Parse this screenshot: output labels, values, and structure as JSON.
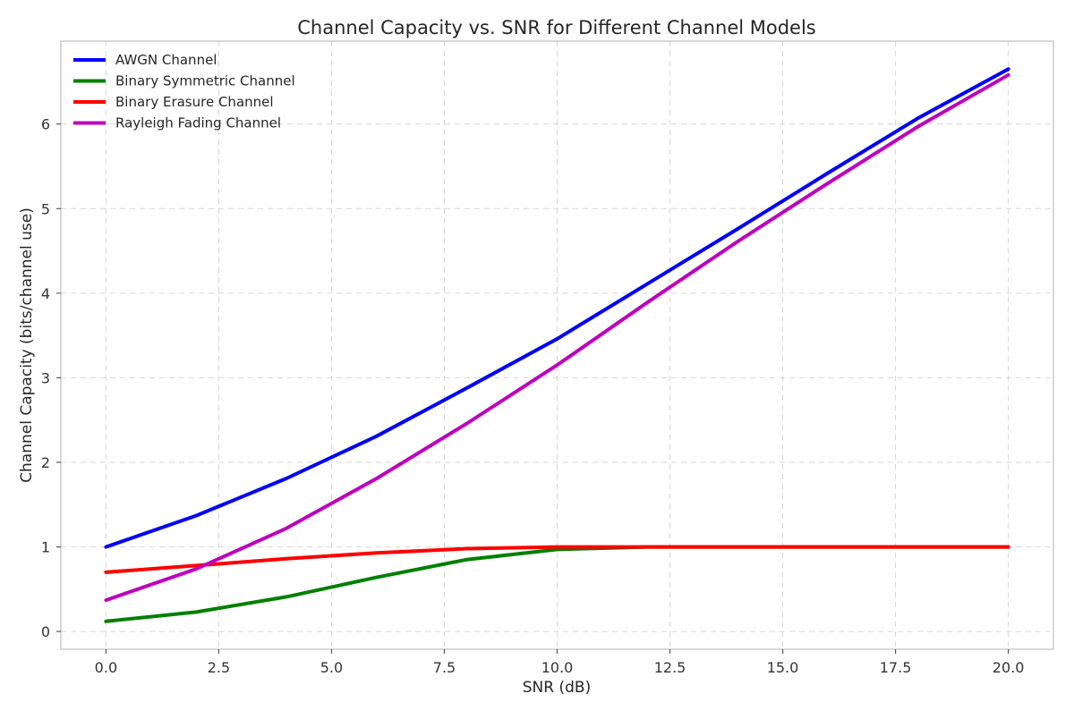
{
  "chart_data": {
    "type": "line",
    "title": "Channel Capacity vs. SNR for Different Channel Models",
    "xlabel": "SNR (dB)",
    "ylabel": "Channel Capacity (bits/channel use)",
    "xlim": [
      -1.0,
      21.0
    ],
    "ylim": [
      -0.21,
      6.98
    ],
    "xticks": [
      0.0,
      2.5,
      5.0,
      7.5,
      10.0,
      12.5,
      15.0,
      17.5,
      20.0
    ],
    "xtick_labels": [
      "0.0",
      "2.5",
      "5.0",
      "7.5",
      "10.0",
      "12.5",
      "15.0",
      "17.5",
      "20.0"
    ],
    "yticks": [
      0,
      1,
      2,
      3,
      4,
      5,
      6
    ],
    "ytick_labels": [
      "0",
      "1",
      "2",
      "3",
      "4",
      "5",
      "6"
    ],
    "grid": true,
    "legend_position": "top-left",
    "x": [
      0,
      2,
      4,
      6,
      8,
      10,
      12,
      14,
      16,
      18,
      20
    ],
    "series": [
      {
        "name": "AWGN Channel",
        "color": "#0000ff",
        "values": [
          1.0,
          1.37,
          1.81,
          2.31,
          2.88,
          3.46,
          4.11,
          4.76,
          5.42,
          6.07,
          6.65
        ]
      },
      {
        "name": "Binary Symmetric Channel",
        "color": "#008000",
        "values": [
          0.12,
          0.23,
          0.41,
          0.64,
          0.85,
          0.97,
          1.0,
          1.0,
          1.0,
          1.0,
          1.0
        ]
      },
      {
        "name": "Binary Erasure Channel",
        "color": "#ff0000",
        "values": [
          0.7,
          0.78,
          0.86,
          0.93,
          0.98,
          1.0,
          1.0,
          1.0,
          1.0,
          1.0,
          1.0
        ]
      },
      {
        "name": "Rayleigh Fading Channel",
        "color": "#bf00bf",
        "values": [
          0.37,
          0.74,
          1.22,
          1.81,
          2.46,
          3.15,
          3.89,
          4.61,
          5.3,
          5.97,
          6.58
        ]
      }
    ]
  }
}
